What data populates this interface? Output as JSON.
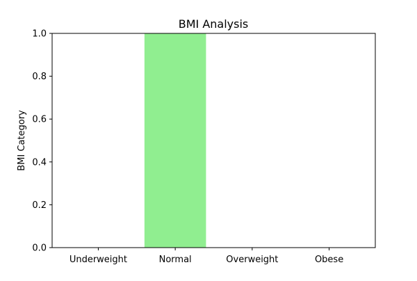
{
  "chart_data": {
    "type": "bar",
    "title": "BMI Analysis",
    "xlabel": "",
    "ylabel": "BMI Category",
    "categories": [
      "Underweight",
      "Normal",
      "Overweight",
      "Obese"
    ],
    "values": [
      0,
      1,
      0,
      0
    ],
    "ylim": [
      0,
      1.0
    ],
    "yticks": [
      "0.0",
      "0.2",
      "0.4",
      "0.6",
      "0.8",
      "1.0"
    ],
    "bar_color": "#90ee90",
    "grid": false,
    "legend": "none"
  }
}
